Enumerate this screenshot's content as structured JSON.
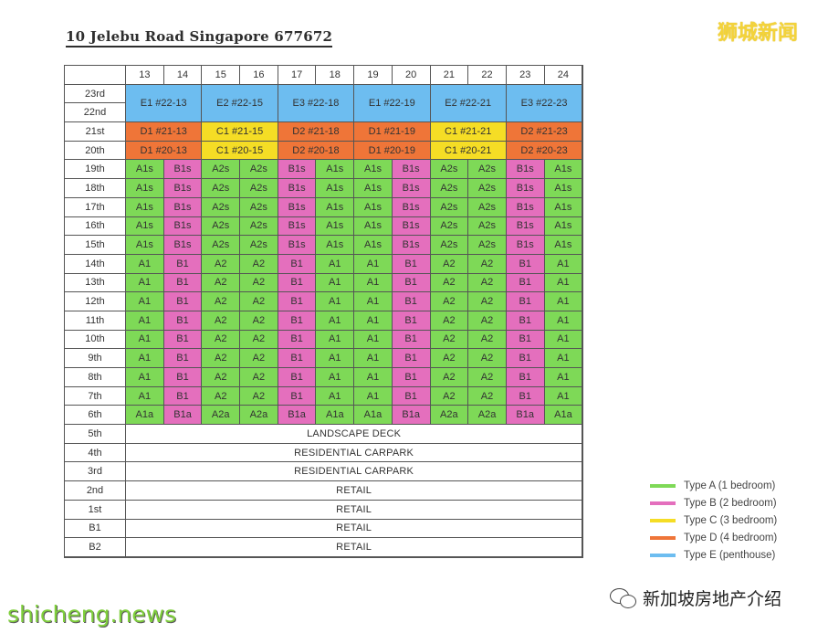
{
  "title": "10 Jelebu Road Singapore 677672",
  "watermarks": {
    "top_right": "狮城新闻",
    "bottom_left": "shicheng.news",
    "bottom_right": "新加坡房地产介绍"
  },
  "columns": [
    "13",
    "14",
    "15",
    "16",
    "17",
    "18",
    "19",
    "20",
    "21",
    "22",
    "23",
    "24"
  ],
  "colors": {
    "A": "#7ed957",
    "B": "#e46fbd",
    "C": "#f5dd25",
    "D": "#ef7538",
    "E": "#6dbdf0"
  },
  "penthouse": {
    "floors": [
      "23rd",
      "22nd"
    ],
    "units": [
      {
        "label": "E1 #22-13",
        "type": "E"
      },
      {
        "label": "E2 #22-15",
        "type": "E"
      },
      {
        "label": "E3 #22-18",
        "type": "E"
      },
      {
        "label": "E1 #22-19",
        "type": "E"
      },
      {
        "label": "E2 #22-21",
        "type": "E"
      },
      {
        "label": "E3 #22-23",
        "type": "E"
      }
    ]
  },
  "rows": [
    {
      "floor": "21st",
      "cells": [
        {
          "label": "D1 #21-13",
          "type": "D",
          "span": 2
        },
        {
          "label": "C1 #21-15",
          "type": "C",
          "span": 2
        },
        {
          "label": "D2 #21-18",
          "type": "D",
          "span": 2
        },
        {
          "label": "D1 #21-19",
          "type": "D",
          "span": 2
        },
        {
          "label": "C1 #21-21",
          "type": "C",
          "span": 2
        },
        {
          "label": "D2 #21-23",
          "type": "D",
          "span": 2
        }
      ]
    },
    {
      "floor": "20th",
      "cells": [
        {
          "label": "D1 #20-13",
          "type": "D",
          "span": 2
        },
        {
          "label": "C1 #20-15",
          "type": "C",
          "span": 2
        },
        {
          "label": "D2 #20-18",
          "type": "D",
          "span": 2
        },
        {
          "label": "D1 #20-19",
          "type": "D",
          "span": 2
        },
        {
          "label": "C1 #20-21",
          "type": "C",
          "span": 2
        },
        {
          "label": "D2 #20-23",
          "type": "D",
          "span": 2
        }
      ]
    },
    {
      "floor": "19th",
      "units": [
        "A1s",
        "B1s",
        "A2s",
        "A2s",
        "B1s",
        "A1s",
        "A1s",
        "B1s",
        "A2s",
        "A2s",
        "B1s",
        "A1s"
      ]
    },
    {
      "floor": "18th",
      "units": [
        "A1s",
        "B1s",
        "A2s",
        "A2s",
        "B1s",
        "A1s",
        "A1s",
        "B1s",
        "A2s",
        "A2s",
        "B1s",
        "A1s"
      ]
    },
    {
      "floor": "17th",
      "units": [
        "A1s",
        "B1s",
        "A2s",
        "A2s",
        "B1s",
        "A1s",
        "A1s",
        "B1s",
        "A2s",
        "A2s",
        "B1s",
        "A1s"
      ]
    },
    {
      "floor": "16th",
      "units": [
        "A1s",
        "B1s",
        "A2s",
        "A2s",
        "B1s",
        "A1s",
        "A1s",
        "B1s",
        "A2s",
        "A2s",
        "B1s",
        "A1s"
      ]
    },
    {
      "floor": "15th",
      "units": [
        "A1s",
        "B1s",
        "A2s",
        "A2s",
        "B1s",
        "A1s",
        "A1s",
        "B1s",
        "A2s",
        "A2s",
        "B1s",
        "A1s"
      ]
    },
    {
      "floor": "14th",
      "units": [
        "A1",
        "B1",
        "A2",
        "A2",
        "B1",
        "A1",
        "A1",
        "B1",
        "A2",
        "A2",
        "B1",
        "A1"
      ]
    },
    {
      "floor": "13th",
      "units": [
        "A1",
        "B1",
        "A2",
        "A2",
        "B1",
        "A1",
        "A1",
        "B1",
        "A2",
        "A2",
        "B1",
        "A1"
      ]
    },
    {
      "floor": "12th",
      "units": [
        "A1",
        "B1",
        "A2",
        "A2",
        "B1",
        "A1",
        "A1",
        "B1",
        "A2",
        "A2",
        "B1",
        "A1"
      ]
    },
    {
      "floor": "11th",
      "units": [
        "A1",
        "B1",
        "A2",
        "A2",
        "B1",
        "A1",
        "A1",
        "B1",
        "A2",
        "A2",
        "B1",
        "A1"
      ]
    },
    {
      "floor": "10th",
      "units": [
        "A1",
        "B1",
        "A2",
        "A2",
        "B1",
        "A1",
        "A1",
        "B1",
        "A2",
        "A2",
        "B1",
        "A1"
      ]
    },
    {
      "floor": "9th",
      "units": [
        "A1",
        "B1",
        "A2",
        "A2",
        "B1",
        "A1",
        "A1",
        "B1",
        "A2",
        "A2",
        "B1",
        "A1"
      ]
    },
    {
      "floor": "8th",
      "units": [
        "A1",
        "B1",
        "A2",
        "A2",
        "B1",
        "A1",
        "A1",
        "B1",
        "A2",
        "A2",
        "B1",
        "A1"
      ]
    },
    {
      "floor": "7th",
      "units": [
        "A1",
        "B1",
        "A2",
        "A2",
        "B1",
        "A1",
        "A1",
        "B1",
        "A2",
        "A2",
        "B1",
        "A1"
      ]
    },
    {
      "floor": "6th",
      "units": [
        "A1a",
        "B1a",
        "A2a",
        "A2a",
        "B1a",
        "A1a",
        "A1a",
        "B1a",
        "A2a",
        "A2a",
        "B1a",
        "A1a"
      ]
    },
    {
      "floor": "5th",
      "wide": "LANDSCAPE DECK"
    },
    {
      "floor": "4th",
      "wide": "RESIDENTIAL CARPARK"
    },
    {
      "floor": "3rd",
      "wide": "RESIDENTIAL CARPARK"
    },
    {
      "floor": "2nd",
      "wide": "RETAIL"
    },
    {
      "floor": "1st",
      "wide": "RETAIL"
    },
    {
      "floor": "B1",
      "wide": "RETAIL"
    },
    {
      "floor": "B2",
      "wide": "RETAIL"
    }
  ],
  "legend": [
    {
      "label": "Type A (1 bedroom)",
      "type": "A"
    },
    {
      "label": "Type B (2 bedroom)",
      "type": "B"
    },
    {
      "label": "Type C (3 bedroom)",
      "type": "C"
    },
    {
      "label": "Type D (4 bedroom)",
      "type": "D"
    },
    {
      "label": "Type E (penthouse)",
      "type": "E"
    }
  ]
}
